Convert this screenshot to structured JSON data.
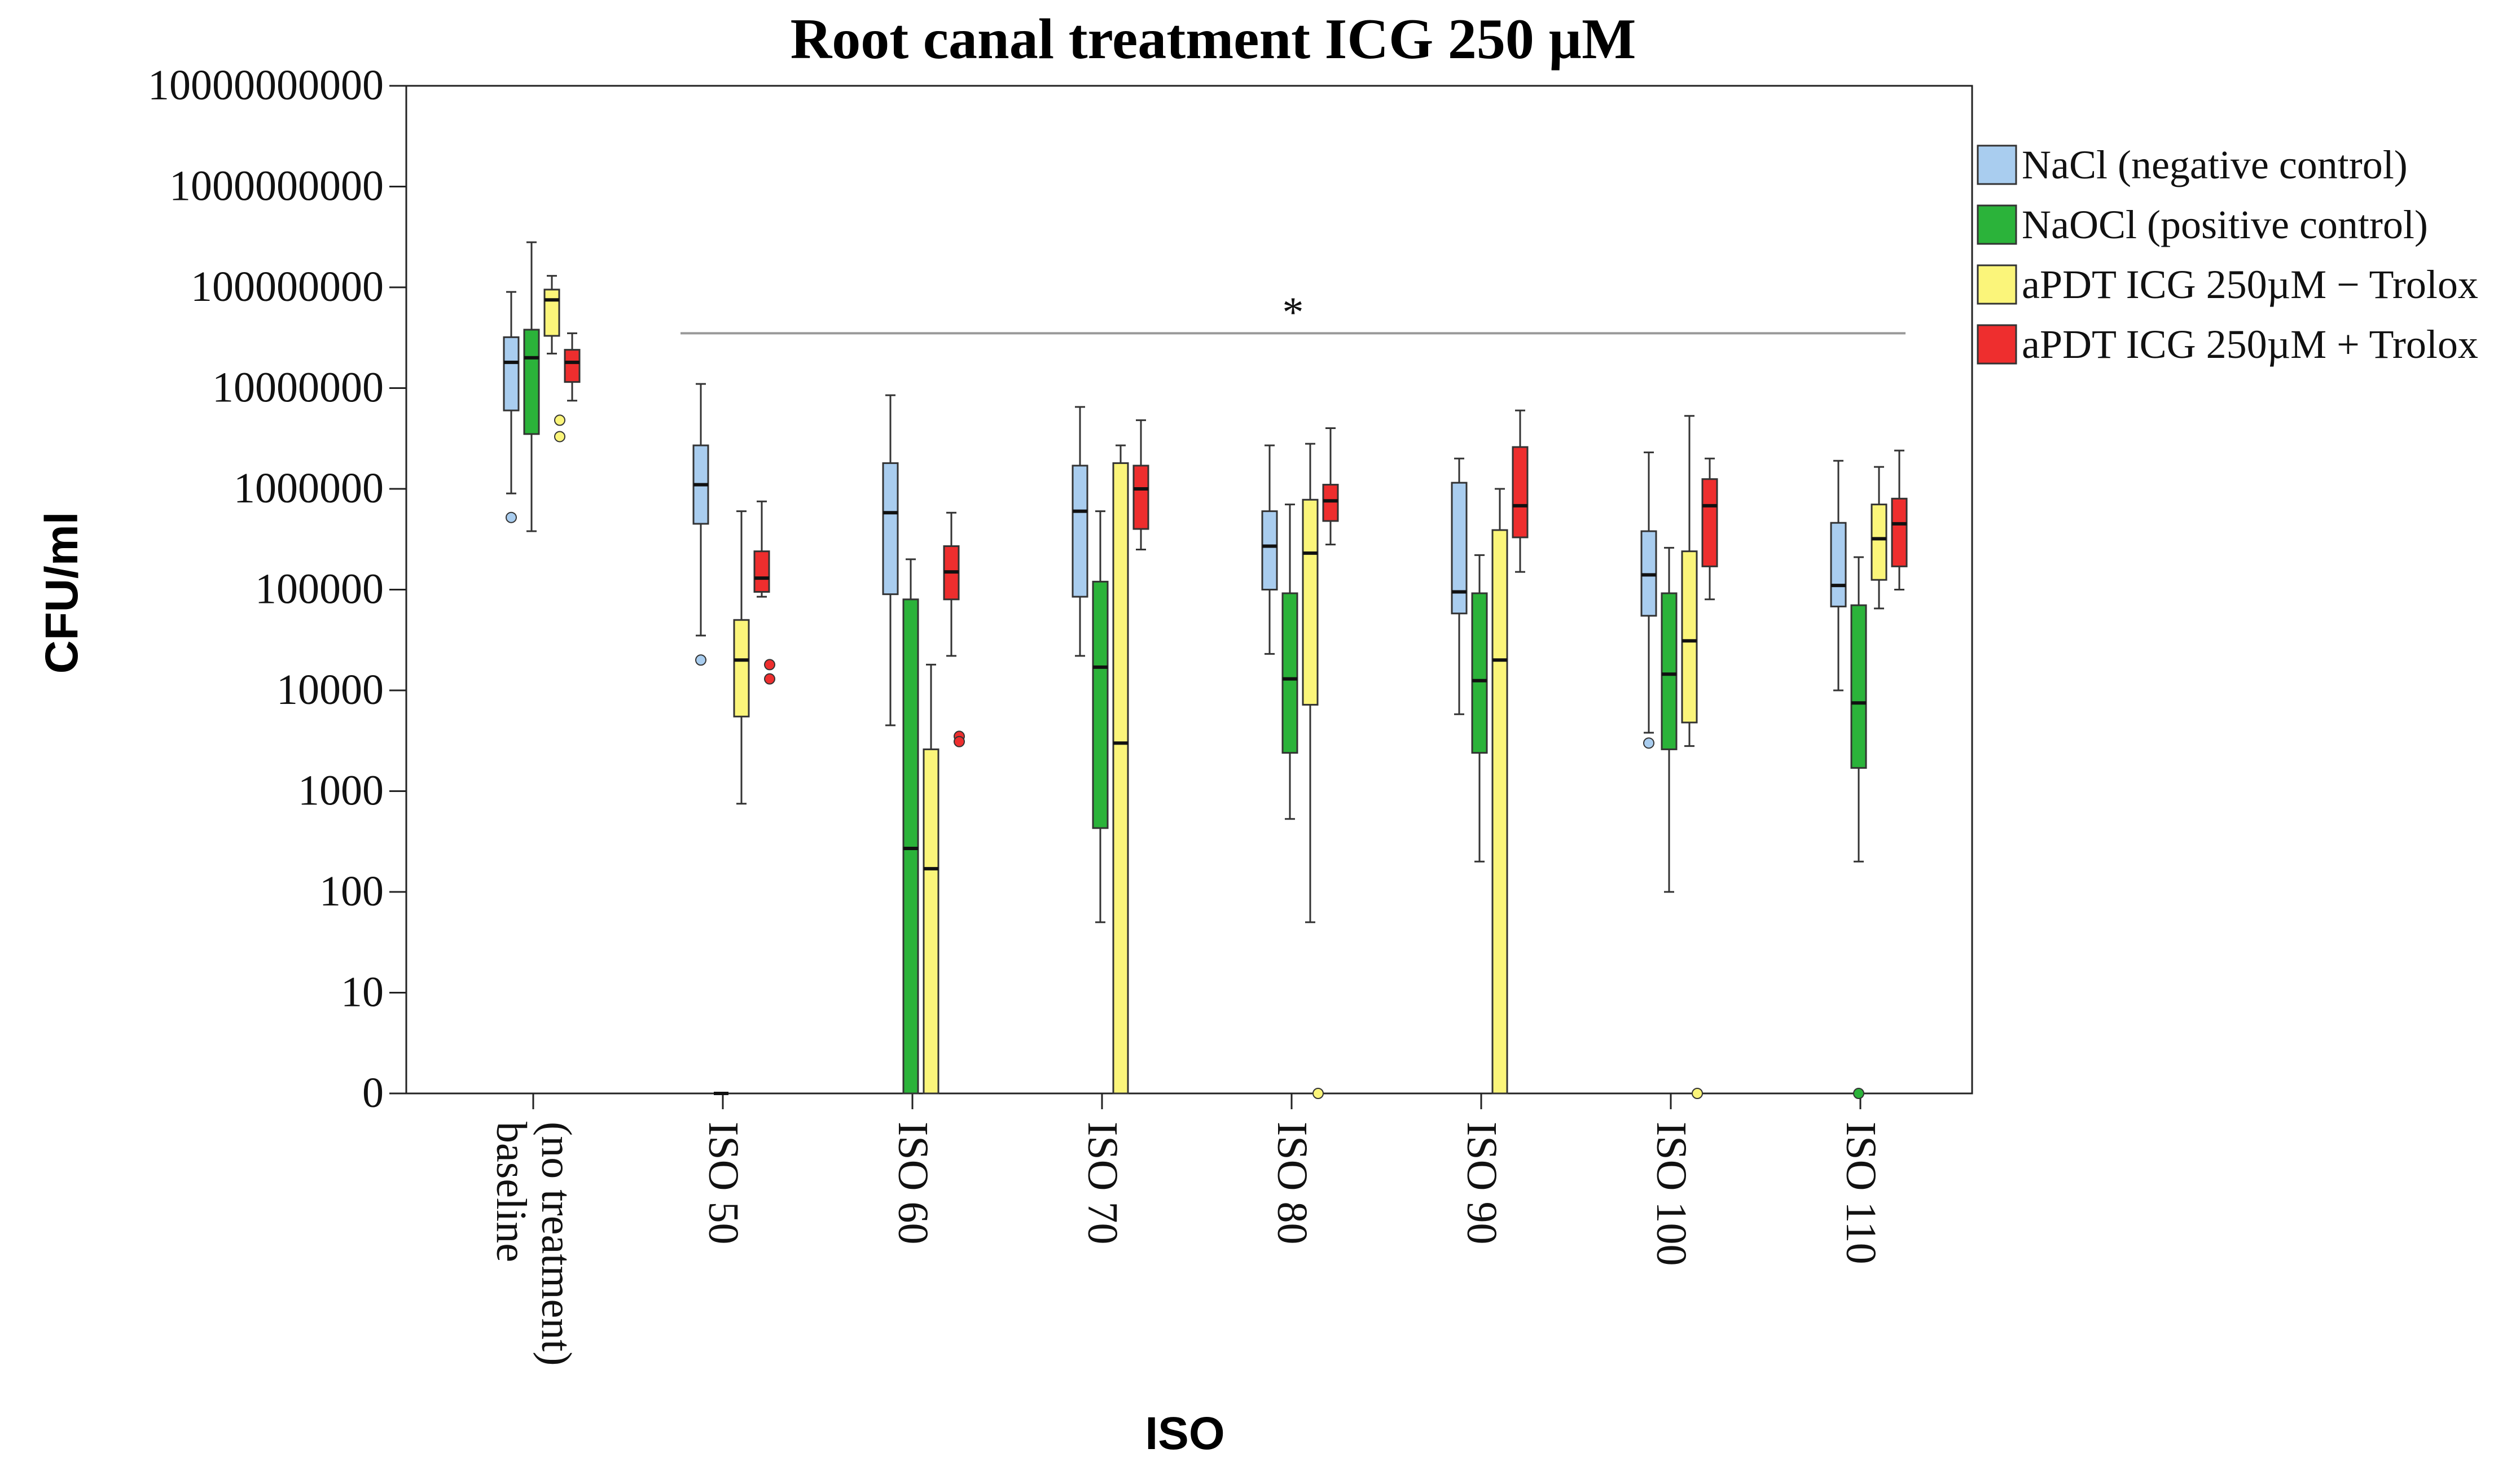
{
  "chart_data": {
    "type": "box",
    "title": "Root canal treatment ICG 250 µM",
    "xlabel": "ISO",
    "ylabel": "CFU/ml",
    "y_scale": "log (zero shown at bottom)",
    "y_ticks": [
      "10000000000",
      "1000000000",
      "100000000",
      "10000000",
      "1000000",
      "100000",
      "10000",
      "1000",
      "100",
      "10",
      "0"
    ],
    "categories": [
      "baseline\n(no treatment)",
      "ISO 50",
      "ISO 60",
      "ISO 70",
      "ISO 80",
      "ISO 90",
      "ISO 100",
      "ISO 110"
    ],
    "legend_position": "right",
    "significance": {
      "label": "*",
      "from_category": "ISO 50",
      "to_category": "ISO 110",
      "y": 35000000
    },
    "series": [
      {
        "name": "NaCl (negative control)",
        "color": "#a9cdef",
        "boxes": [
          {
            "min": 900000,
            "q1": 6000000,
            "median": 18000000,
            "q3": 32000000,
            "max": 90000000,
            "outliers": [
              520000
            ]
          },
          {
            "min": 35000,
            "q1": 450000,
            "median": 1100000,
            "q3": 2700000,
            "max": 11000000,
            "outliers": [
              20000
            ]
          },
          {
            "min": 4500,
            "q1": 90000,
            "median": 580000,
            "q3": 1800000,
            "max": 8500000,
            "outliers": []
          },
          {
            "min": 22000,
            "q1": 85000,
            "median": 600000,
            "q3": 1700000,
            "max": 6500000,
            "outliers": []
          },
          {
            "min": 23000,
            "q1": 100000,
            "median": 270000,
            "q3": 600000,
            "max": 2700000,
            "outliers": []
          },
          {
            "min": 5800,
            "q1": 58000,
            "median": 95000,
            "q3": 1150000,
            "max": 2000000,
            "outliers": []
          },
          {
            "min": 3800,
            "q1": 55000,
            "median": 140000,
            "q3": 380000,
            "max": 2300000,
            "outliers": [
              3000
            ]
          },
          {
            "min": 10000,
            "q1": 68000,
            "median": 110000,
            "q3": 460000,
            "max": 1900000,
            "outliers": []
          }
        ]
      },
      {
        "name": "NaOCl (positive control)",
        "color": "#2bb33a",
        "boxes": [
          {
            "min": 380000,
            "q1": 3500000,
            "median": 20000000,
            "q3": 38000000,
            "max": 280000000,
            "outliers": []
          },
          {
            "min": 0,
            "q1": 0,
            "median": 0,
            "q3": 0,
            "max": 0,
            "outliers": []
          },
          {
            "min": 0,
            "q1": 0,
            "median": 270,
            "q3": 80000,
            "max": 200000,
            "outliers": []
          },
          {
            "min": 50,
            "q1": 430,
            "median": 17000,
            "q3": 120000,
            "max": 600000,
            "outliers": []
          },
          {
            "min": 530,
            "q1": 2400,
            "median": 13000,
            "q3": 92000,
            "max": 700000,
            "outliers": []
          },
          {
            "min": 200,
            "q1": 2400,
            "median": 12500,
            "q3": 92000,
            "max": 220000,
            "outliers": []
          },
          {
            "min": 100,
            "q1": 2600,
            "median": 14500,
            "q3": 92000,
            "max": 260000,
            "outliers": []
          },
          {
            "min": 200,
            "q1": 1700,
            "median": 7500,
            "q3": 70000,
            "max": 210000,
            "outliers": [
              0
            ]
          }
        ]
      },
      {
        "name": "aPDT ICG 250µM − Trolox",
        "color": "#fbf57a",
        "boxes": [
          {
            "min": 22000000,
            "q1": 33000000,
            "median": 75000000,
            "q3": 95000000,
            "max": 130000000,
            "outliers": [
              4800000,
              3300000
            ]
          },
          {
            "min": 750,
            "q1": 5500,
            "median": 20000,
            "q3": 50000,
            "max": 600000,
            "outliers": []
          },
          {
            "min": 0,
            "q1": 0,
            "median": 170,
            "q3": 2600,
            "max": 18000,
            "outliers": []
          },
          {
            "min": 0,
            "q1": 0,
            "median": 3000,
            "q3": 1800000,
            "max": 2700000,
            "outliers": []
          },
          {
            "min": 50,
            "q1": 7200,
            "median": 230000,
            "q3": 780000,
            "max": 2800000,
            "outliers": [
              0
            ]
          },
          {
            "min": 0,
            "q1": 0,
            "median": 20000,
            "q3": 390000,
            "max": 1000000,
            "outliers": []
          },
          {
            "min": 2800,
            "q1": 4800,
            "median": 31000,
            "q3": 240000,
            "max": 5300000,
            "outliers": [
              0
            ]
          },
          {
            "min": 65000,
            "q1": 125000,
            "median": 320000,
            "q3": 700000,
            "max": 1650000,
            "outliers": []
          }
        ]
      },
      {
        "name": "aPDT ICG 250µM + Trolox",
        "color": "#ee2e2e",
        "boxes": [
          {
            "min": 7500000,
            "q1": 11500000,
            "median": 18000000,
            "q3": 24000000,
            "max": 35000000,
            "outliers": []
          },
          {
            "min": 85000,
            "q1": 95000,
            "median": 130000,
            "q3": 240000,
            "max": 750000,
            "outliers": [
              18000,
              13000
            ]
          },
          {
            "min": 22000,
            "q1": 80000,
            "median": 150000,
            "q3": 270000,
            "max": 580000,
            "outliers": [
              3500,
              3100
            ]
          },
          {
            "min": 250000,
            "q1": 400000,
            "median": 1000000,
            "q3": 1700000,
            "max": 4800000,
            "outliers": []
          },
          {
            "min": 280000,
            "q1": 480000,
            "median": 760000,
            "q3": 1100000,
            "max": 4000000,
            "outliers": []
          },
          {
            "min": 150000,
            "q1": 330000,
            "median": 680000,
            "q3": 2600000,
            "max": 6000000,
            "outliers": []
          },
          {
            "min": 80000,
            "q1": 170000,
            "median": 680000,
            "q3": 1250000,
            "max": 2000000,
            "outliers": []
          },
          {
            "min": 100000,
            "q1": 170000,
            "median": 450000,
            "q3": 800000,
            "max": 2400000,
            "outliers": []
          }
        ]
      }
    ]
  }
}
